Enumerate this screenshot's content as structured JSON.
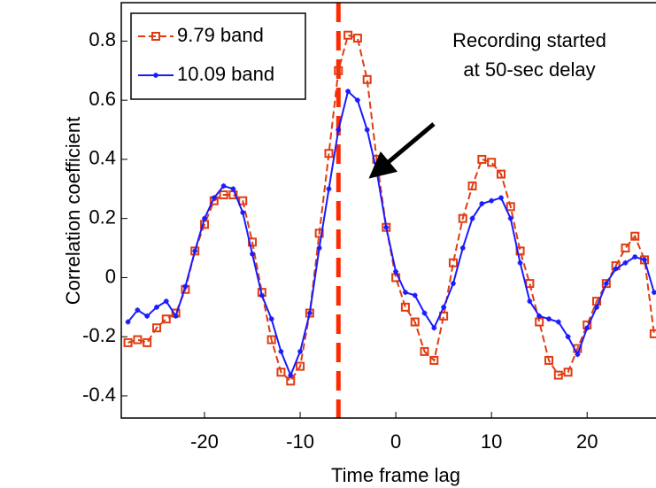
{
  "chart_data": {
    "type": "line",
    "xlabel": "Time frame lag",
    "ylabel": "Correlation coefficient",
    "annotation": [
      "Recording started",
      "at 50-sec delay"
    ],
    "annotation_color": "#0a7a0a",
    "vline_x": -6,
    "vline_color": "#ff2a00",
    "x": [
      -28,
      -27,
      -26,
      -25,
      -24,
      -23,
      -22,
      -21,
      -20,
      -19,
      -18,
      -17,
      -16,
      -15,
      -14,
      -13,
      -12,
      -11,
      -10,
      -9,
      -8,
      -7,
      -6,
      -5,
      -4,
      -3,
      -2,
      -1,
      0,
      1,
      2,
      3,
      4,
      5,
      6,
      7,
      8,
      9,
      10,
      11,
      12,
      13,
      14,
      15,
      16,
      17,
      18,
      19,
      20,
      21,
      22,
      23,
      24,
      25,
      26,
      27
    ],
    "series": [
      {
        "name": "9.79 band",
        "color": "#e03c10",
        "marker": "square",
        "dash": true,
        "values": [
          -0.22,
          -0.21,
          -0.22,
          -0.17,
          -0.14,
          -0.12,
          -0.04,
          0.09,
          0.18,
          0.26,
          0.28,
          0.28,
          0.26,
          0.12,
          -0.05,
          -0.21,
          -0.32,
          -0.35,
          -0.3,
          -0.12,
          0.15,
          0.42,
          0.7,
          0.82,
          0.81,
          0.67,
          0.4,
          0.17,
          0,
          -0.1,
          -0.15,
          -0.25,
          -0.28,
          -0.13,
          0.05,
          0.2,
          0.31,
          0.4,
          0.39,
          0.35,
          0.24,
          0.09,
          -0.02,
          -0.15,
          -0.28,
          -0.33,
          -0.32,
          -0.24,
          -0.16,
          -0.08,
          -0.02,
          0.04,
          0.1,
          0.14,
          0.06,
          -0.19
        ]
      },
      {
        "name": "10.09 band",
        "color": "#1a1aff",
        "marker": "star",
        "dash": false,
        "values": [
          -0.15,
          -0.11,
          -0.13,
          -0.1,
          -0.08,
          -0.13,
          -0.03,
          0.09,
          0.2,
          0.27,
          0.31,
          0.3,
          0.22,
          0.08,
          -0.06,
          -0.14,
          -0.25,
          -0.33,
          -0.25,
          -0.12,
          0.1,
          0.3,
          0.5,
          0.63,
          0.6,
          0.5,
          0.36,
          0.17,
          0.02,
          -0.05,
          -0.06,
          -0.12,
          -0.17,
          -0.1,
          -0.02,
          0.1,
          0.2,
          0.25,
          0.26,
          0.27,
          0.2,
          0.05,
          -0.08,
          -0.13,
          -0.14,
          -0.15,
          -0.2,
          -0.26,
          -0.17,
          -0.1,
          -0.02,
          0.03,
          0.05,
          0.07,
          0.06,
          -0.05
        ]
      }
    ],
    "xlim": [
      -28.7,
      27.2
    ],
    "ylim": [
      -0.475,
      0.93
    ],
    "xticks": [
      -20,
      -10,
      0,
      10,
      20
    ],
    "yticks": [
      -0.4,
      -0.2,
      0,
      0.2,
      0.4,
      0.6,
      0.8
    ],
    "legend": "upper left",
    "grid": false
  }
}
